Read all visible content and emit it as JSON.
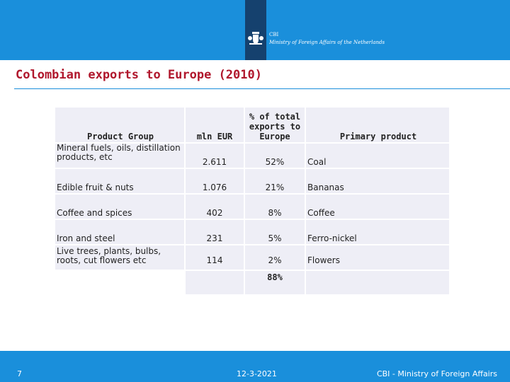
{
  "header": {
    "logo_cbi": "CBI",
    "logo_ministry": "Ministry of Foreign Affairs of the Netherlands"
  },
  "slide": {
    "title": "Colombian exports to Europe (2010)"
  },
  "table": {
    "headers": [
      "Product Group",
      "mln EUR",
      "% of total exports to Europe",
      "Primary product"
    ],
    "rows": [
      [
        "Mineral fuels, oils, distillation products, etc",
        "2.611",
        "52%",
        "Coal"
      ],
      [
        "Edible fruit & nuts",
        "1.076",
        "21%",
        "Bananas"
      ],
      [
        "Coffee and spices",
        "402",
        "8%",
        "Coffee"
      ],
      [
        "Iron and steel",
        "231",
        "5%",
        "Ferro-nickel"
      ],
      [
        "Live trees, plants, bulbs, roots, cut flowers etc",
        "114",
        "2%",
        "Flowers"
      ]
    ],
    "total": "88%"
  },
  "footer": {
    "page_number": "7",
    "date": "12-3-2021",
    "organization": "CBI - Ministry of Foreign Affairs"
  },
  "colors": {
    "header_blue": "#1a8fdb",
    "logo_panel": "#15416e",
    "title_red": "#b0172c",
    "cell_bg": "#eeeef6"
  }
}
